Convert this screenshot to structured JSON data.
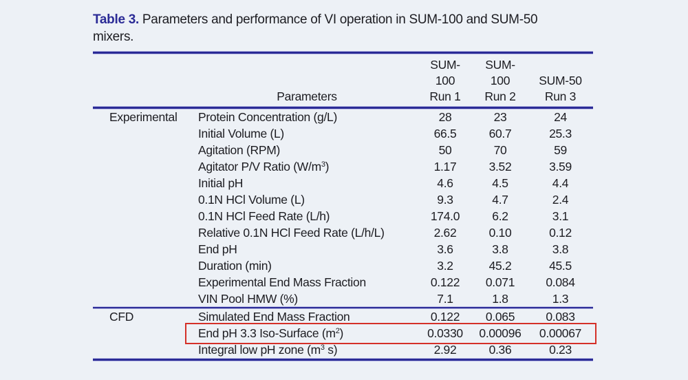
{
  "caption": {
    "label": "Table 3.",
    "line1_rest": " Parameters and performance of VI operation in SUM-100 and SUM-50",
    "line2": "mixers."
  },
  "colors": {
    "accent_navy": "#2b2b96",
    "highlight_red": "#d43028",
    "background": "#edf1f6",
    "text": "#1d1d22"
  },
  "header": {
    "parameters": "Parameters",
    "run1_lines": [
      "SUM-",
      "100",
      "Run 1"
    ],
    "run2_lines": [
      "SUM-",
      "100",
      "Run 2"
    ],
    "run3_lines": [
      "SUM-50",
      "Run 3"
    ]
  },
  "sections": [
    {
      "group": "Experimental",
      "rows": [
        {
          "label": "Protein Concentration (g/L)",
          "v1": "28",
          "v2": "23",
          "v3": "24"
        },
        {
          "label": "Initial Volume (L)",
          "v1": "66.5",
          "v2": "60.7",
          "v3": "25.3"
        },
        {
          "label": "Agitation (RPM)",
          "v1": "50",
          "v2": "70",
          "v3": "59"
        },
        {
          "pre": "Agitator P/V Ratio (W/m",
          "sup": "3",
          "post": ")",
          "v1": "1.17",
          "v2": "3.52",
          "v3": "3.59"
        },
        {
          "label": "Initial pH",
          "v1": "4.6",
          "v2": "4.5",
          "v3": "4.4"
        },
        {
          "label": "0.1N HCl Volume (L)",
          "v1": "9.3",
          "v2": "4.7",
          "v3": "2.4"
        },
        {
          "label": "0.1N HCl Feed Rate (L/h)",
          "v1": "174.0",
          "v2": "6.2",
          "v3": "3.1"
        },
        {
          "label": "Relative 0.1N HCl Feed Rate (L/h/L)",
          "v1": "2.62",
          "v2": "0.10",
          "v3": "0.12"
        },
        {
          "label": "End pH",
          "v1": "3.6",
          "v2": "3.8",
          "v3": "3.8"
        },
        {
          "label": "Duration (min)",
          "v1": "3.2",
          "v2": "45.2",
          "v3": "45.5"
        },
        {
          "label": "Experimental End Mass Fraction",
          "v1": "0.122",
          "v2": "0.071",
          "v3": "0.084"
        },
        {
          "label": "VIN Pool HMW (%)",
          "v1": "7.1",
          "v2": "1.8",
          "v3": "1.3"
        }
      ]
    },
    {
      "group": "CFD",
      "rows": [
        {
          "label": "Simulated End Mass Fraction",
          "v1": "0.122",
          "v2": "0.065",
          "v3": "0.083"
        },
        {
          "pre": "End pH 3.3 Iso-Surface (m",
          "sup": "2",
          "post": ")",
          "v1": "0.0330",
          "v2": "0.00096",
          "v3": "0.00067"
        },
        {
          "pre": "Integral low pH zone (m",
          "sup": "3",
          "post": " s)",
          "v1": "2.92",
          "v2": "0.36",
          "v3": "0.23"
        }
      ]
    }
  ],
  "highlight": {
    "color": "#d43028",
    "target_row": "End pH 3.3 Iso-Surface (m2)"
  }
}
